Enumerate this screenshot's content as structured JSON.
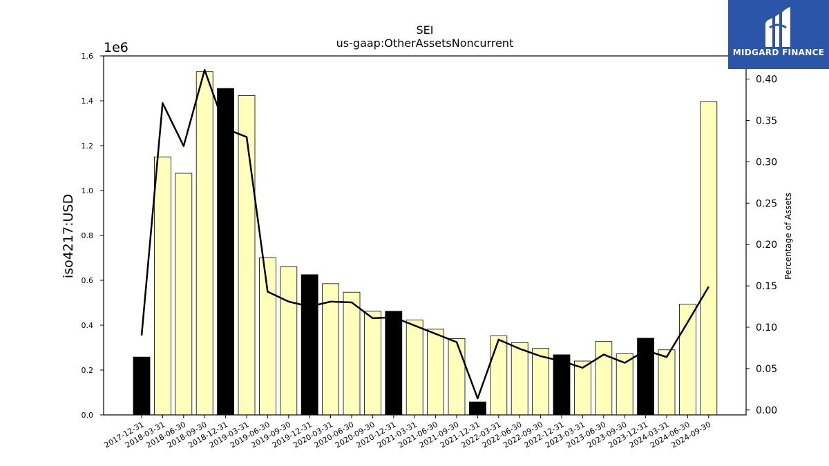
{
  "brand": {
    "name": "MIDGARD FINANCE",
    "bg_color": "#2a55a8"
  },
  "chart_data": {
    "type": "bar",
    "title": "SEI",
    "subtitle": "us-gaap:OtherAssetsNoncurrent",
    "ylabel": "iso4217:USD",
    "y_multiplier_label": "1e6",
    "y2label": "Percentage of Assets",
    "ylim": [
      0,
      1600000
    ],
    "y2lim": [
      -0.006,
      0.428
    ],
    "yticks": [
      "0.0",
      "0.2",
      "0.4",
      "0.6",
      "0.8",
      "1.0",
      "1.2",
      "1.4",
      "1.6"
    ],
    "y2ticks": [
      "0.00",
      "0.05",
      "0.10",
      "0.15",
      "0.20",
      "0.25",
      "0.30",
      "0.35",
      "0.40"
    ],
    "categories": [
      "2017-12-31",
      "2018-03-31",
      "2018-06-30",
      "2018-09-30",
      "2018-12-31",
      "2019-03-31",
      "2019-06-30",
      "2019-09-30",
      "2019-12-31",
      "2020-03-31",
      "2020-06-30",
      "2020-09-30",
      "2020-12-31",
      "2021-03-31",
      "2021-06-30",
      "2021-09-30",
      "2021-12-31",
      "2022-03-31",
      "2022-06-30",
      "2022-09-30",
      "2022-12-31",
      "2023-03-31",
      "2023-06-30",
      "2023-09-30",
      "2023-12-31",
      "2024-03-31",
      "2024-06-30",
      "2024-09-30"
    ],
    "series": [
      {
        "values": [
          258000,
          1150000,
          1077000,
          1530000,
          1455000,
          1423000,
          700000,
          660000,
          625000,
          585000,
          547000,
          462000,
          462000,
          423000,
          382000,
          340000,
          58000,
          352000,
          322000,
          296000,
          268000,
          240000,
          327000,
          273000,
          342000,
          290000,
          494000,
          1396000
        ]
      },
      {
        "axis": "right",
        "values": [
          0.09,
          0.371,
          0.319,
          0.411,
          0.34,
          0.33,
          0.143,
          0.131,
          0.125,
          0.131,
          0.13,
          0.111,
          0.112,
          0.102,
          0.092,
          0.082,
          0.014,
          0.085,
          0.074,
          0.065,
          0.059,
          0.051,
          0.067,
          0.057,
          0.072,
          0.064,
          0.106,
          0.149
        ]
      }
    ],
    "bar_colors": {
      "year_end": "#000000",
      "quarter": "#ffffbb",
      "line": "#000000"
    },
    "grid": false
  }
}
